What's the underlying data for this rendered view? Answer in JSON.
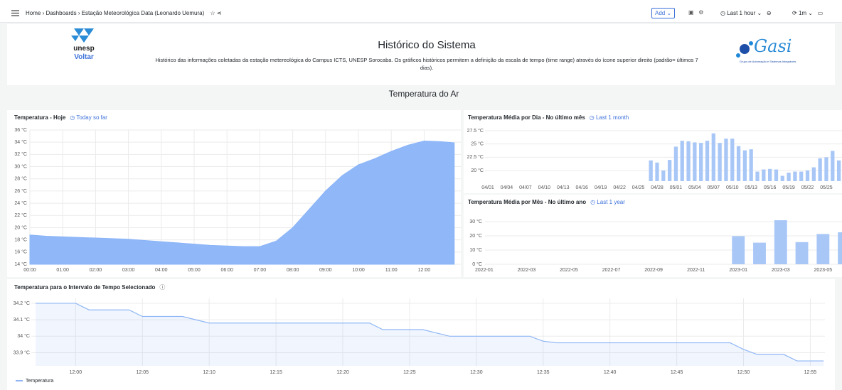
{
  "nav": {
    "breadcrumbs": [
      "Home",
      "Dashboards",
      "Estação Meteorológica Data (Leonardo Uemura)"
    ],
    "add": "Add",
    "time_picker": "Last 1 hour",
    "refresh": "1m"
  },
  "header": {
    "logo_left": "unesp",
    "back_link": "Voltar",
    "title": "Histórico do Sistema",
    "description": "Histórico das informações coletadas da estação metereológica do Campus ICTS, UNESP Sorocaba. Os gráficos históricos permitem a definição da escala de tempo (time range) através do ícone superior direito (padrão= últimos 7 dias).",
    "logo_right": "Gasi",
    "logo_right_caption": "Grupo de Automação e Sistemas Integráveis"
  },
  "row_title": "Temperatura do Ar",
  "chart_data": [
    {
      "type": "area",
      "title": "Temperatura - Hoje",
      "time_range": "Today so far",
      "color": "#8ab4f8",
      "grid": true,
      "x": [
        "00:00",
        "00:30",
        "01:00",
        "01:30",
        "02:00",
        "02:30",
        "03:00",
        "03:30",
        "04:00",
        "04:30",
        "05:00",
        "05:30",
        "06:00",
        "06:30",
        "07:00",
        "07:30",
        "08:00",
        "08:30",
        "09:00",
        "09:30",
        "10:00",
        "10:30",
        "11:00",
        "11:30",
        "12:00",
        "12:30",
        "12:55"
      ],
      "values": [
        18.8,
        18.6,
        18.5,
        18.4,
        18.3,
        18.2,
        18.1,
        17.9,
        17.7,
        17.5,
        17.3,
        17.1,
        17.0,
        16.9,
        16.9,
        17.8,
        20.0,
        23.0,
        26.0,
        28.5,
        30.3,
        31.3,
        32.5,
        33.5,
        34.2,
        34.1,
        33.9
      ],
      "xlim": [
        "00:00",
        "13:07"
      ],
      "xticks": [
        "00:00",
        "01:00",
        "02:00",
        "03:00",
        "04:00",
        "05:00",
        "06:00",
        "07:00",
        "08:00",
        "09:00",
        "10:00",
        "11:00",
        "12:00"
      ],
      "ylim": [
        14,
        36
      ],
      "yticks": [
        {
          "value": 14,
          "label": "14 °C"
        },
        {
          "value": 16,
          "label": "16 °C"
        },
        {
          "value": 18,
          "label": "18 °C"
        },
        {
          "value": 20,
          "label": "20 °C"
        },
        {
          "value": 22,
          "label": "22 °C"
        },
        {
          "value": 24,
          "label": "24 °C"
        },
        {
          "value": 26,
          "label": "26 °C"
        },
        {
          "value": 28,
          "label": "28 °C"
        },
        {
          "value": 30,
          "label": "30 °C"
        },
        {
          "value": 32,
          "label": "32 °C"
        },
        {
          "value": 34,
          "label": "34 °C"
        },
        {
          "value": 36,
          "label": "36 °C"
        }
      ]
    },
    {
      "type": "bar",
      "title": "Temperatura Média por Dia - No último mês",
      "time_range": "Last 1 month",
      "color": "#a8c7f7",
      "grid": true,
      "categories": [
        "04/01",
        null,
        null,
        "04/04",
        null,
        null,
        "04/07",
        null,
        null,
        "04/10",
        null,
        null,
        "04/13",
        null,
        null,
        "04/16",
        null,
        null,
        "04/19",
        null,
        null,
        "04/22",
        null,
        null,
        "04/25",
        null,
        null,
        "04/28",
        null,
        null,
        "05/01",
        null,
        null,
        "05/04",
        null,
        null,
        "05/07",
        null,
        null,
        "05/10",
        null,
        null,
        "05/13",
        null,
        null,
        "05/16",
        null,
        null,
        "05/19",
        null,
        null,
        "05/22",
        null,
        null,
        "05/25",
        null,
        null
      ],
      "values": [
        null,
        null,
        null,
        null,
        null,
        null,
        null,
        null,
        null,
        null,
        null,
        null,
        null,
        null,
        null,
        null,
        null,
        null,
        null,
        null,
        null,
        null,
        null,
        null,
        null,
        null,
        21.9,
        21.5,
        20.0,
        22.0,
        24.5,
        25.6,
        25.5,
        25.3,
        25.2,
        25.6,
        27.0,
        25.2,
        26.0,
        26.0,
        24.6,
        23.8,
        24.0,
        19.8,
        20.2,
        20.3,
        20.2,
        19.0,
        19.6,
        19.8,
        19.8,
        20.0,
        20.6,
        22.3,
        22.5,
        23.7,
        21.9
      ],
      "ylim": [
        18,
        28.5
      ],
      "yticks": [
        {
          "value": 20,
          "label": "20 °C"
        },
        {
          "value": 22.5,
          "label": "22.5 °C"
        },
        {
          "value": 25,
          "label": "25 °C"
        },
        {
          "value": 27.5,
          "label": "27.5 °C"
        }
      ]
    },
    {
      "type": "bar",
      "title": "Temperatura Média por Mês - No último ano",
      "time_range": "Last 1 year",
      "color": "#a8c7f7",
      "grid": true,
      "categories": [
        "2022-01",
        null,
        "2022-03",
        null,
        "2022-05",
        null,
        "2022-07",
        null,
        "2022-09",
        null,
        "2022-11",
        null,
        "2023-01",
        null,
        "2023-03",
        null,
        "2023-05",
        null
      ],
      "values": [
        null,
        null,
        null,
        null,
        null,
        null,
        null,
        null,
        null,
        null,
        null,
        null,
        19.8,
        15.2,
        31.0,
        15.6,
        21.3,
        22.5
      ],
      "ylim": [
        0,
        33
      ],
      "yticks": [
        {
          "value": 0,
          "label": "0 °C"
        },
        {
          "value": 10,
          "label": "10 °C"
        },
        {
          "value": 20,
          "label": "20 °C"
        },
        {
          "value": 30,
          "label": "30 °C"
        }
      ]
    },
    {
      "type": "line",
      "title": "Temperatura para o Intervalo de Tempo Selecionado",
      "grid": true,
      "x": [
        "11:57",
        "11:58",
        "11:59",
        "12:00",
        "12:01",
        "12:02",
        "12:03",
        "12:04",
        "12:05",
        "12:06",
        "12:07",
        "12:08",
        "12:09",
        "12:10",
        "12:11",
        "12:12",
        "12:13",
        "12:14",
        "12:15",
        "12:16",
        "12:17",
        "12:18",
        "12:19",
        "12:20",
        "12:21",
        "12:22",
        "12:23",
        "12:24",
        "12:25",
        "12:26",
        "12:27",
        "12:28",
        "12:29",
        "12:30",
        "12:31",
        "12:32",
        "12:33",
        "12:34",
        "12:35",
        "12:36",
        "12:37",
        "12:38",
        "12:39",
        "12:40",
        "12:41",
        "12:42",
        "12:43",
        "12:44",
        "12:45",
        "12:46",
        "12:47",
        "12:48",
        "12:49",
        "12:50",
        "12:51",
        "12:52",
        "12:53",
        "12:54",
        "12:55",
        "12:56"
      ],
      "series": [
        {
          "name": "Temperatura",
          "color": "#8fb6f5",
          "values": [
            34.2,
            34.2,
            34.2,
            34.2,
            34.16,
            34.16,
            34.16,
            34.16,
            34.12,
            34.12,
            34.12,
            34.12,
            34.1,
            34.08,
            34.08,
            34.08,
            34.08,
            34.08,
            34.08,
            34.08,
            34.08,
            34.08,
            34.08,
            34.08,
            34.08,
            34.08,
            34.04,
            34.04,
            34.04,
            34.04,
            34.02,
            34.0,
            34.0,
            34.0,
            34.0,
            34.0,
            34.0,
            34.0,
            33.97,
            33.96,
            33.96,
            33.96,
            33.96,
            33.96,
            33.96,
            33.96,
            33.96,
            33.96,
            33.96,
            33.96,
            33.96,
            33.96,
            33.96,
            33.92,
            33.89,
            33.89,
            33.89,
            33.85,
            33.85,
            33.85
          ]
        }
      ],
      "xlim": [
        "11:57",
        "12:57"
      ],
      "xticks": [
        "12:00",
        "12:05",
        "12:10",
        "12:15",
        "12:20",
        "12:25",
        "12:30",
        "12:35",
        "12:40",
        "12:45",
        "12:50",
        "12:55"
      ],
      "ylim": [
        33.82,
        34.23
      ],
      "yticks": [
        {
          "value": 33.9,
          "label": "33.9 °C"
        },
        {
          "value": 34,
          "label": "34 °C"
        },
        {
          "value": 34.1,
          "label": "34.1 °C"
        },
        {
          "value": 34.2,
          "label": "34.2 °C"
        }
      ]
    }
  ]
}
